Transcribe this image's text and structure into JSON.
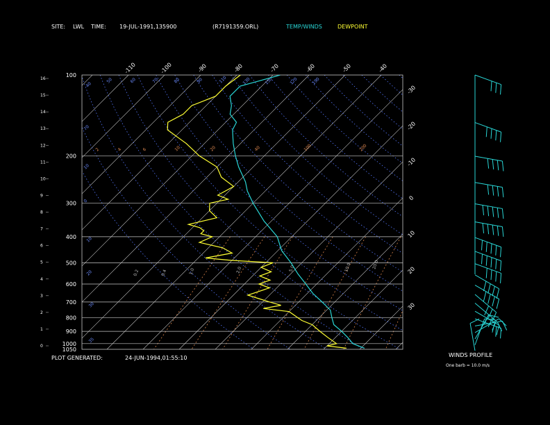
{
  "header": {
    "site_label": "SITE:",
    "site_value": "LWL",
    "time_label": "TIME:",
    "time_value": "19-JUL-1991,135900",
    "file_value": "(R7191359.ORL)",
    "temp_winds_label": "TEMP/WINDS",
    "dewpoint_label": "DEWPOINT"
  },
  "footer": {
    "plot_generated_label": "PLOT GENERATED:",
    "plot_generated_value": "24-JUN-1994,01:55:10",
    "winds_profile_label": "WINDS PROFILE",
    "barb_note": "One barb = 10.0 m/s"
  },
  "colors": {
    "background": "#000000",
    "text": "#ffffff",
    "temperature": "#29d6d6",
    "dewpoint": "#ffff33",
    "mixing_ratio": "#d9844a",
    "dry_adiabat": "#5577ff",
    "isotherm": "#c8c8c8",
    "isobar": "#c8c8c8",
    "wind_barb": "#29d6d6"
  },
  "chart_data": {
    "type": "line",
    "subtype": "skew-T log-P",
    "pressure_levels": [
      100,
      200,
      300,
      400,
      500,
      600,
      700,
      800,
      900,
      1000,
      1050
    ],
    "pressure_tick_labels": [
      "100",
      "200",
      "300",
      "400",
      "500",
      "600",
      "700",
      "800",
      "900",
      "1000",
      "1050"
    ],
    "height_km_ticks": [
      "16",
      "15",
      "14",
      "13",
      "12",
      "11",
      "10",
      "9",
      "8",
      "7",
      "6",
      "5",
      "4",
      "3",
      "2",
      "1",
      "0"
    ],
    "isotherm_top_labels": [
      "-110",
      "-100",
      "-90",
      "-80",
      "-70",
      "-60",
      "-50",
      "-40"
    ],
    "isotherm_right_labels": [
      "-30",
      "-20",
      "-10",
      "0",
      "10",
      "20",
      "30"
    ],
    "dry_adiabat_labels": [
      "40",
      "50",
      "60",
      "70",
      "80",
      "90",
      "110",
      "130",
      "150",
      "170",
      "190"
    ],
    "mixing_ratio_labels": [
      "2",
      "4",
      "6",
      "10",
      "20",
      "40",
      "100",
      "200",
      "400"
    ],
    "mixing_ratio_lower_labels": [
      "0.2",
      "0.4",
      "1.0",
      "2.0",
      "5.0",
      "10.0",
      "20.0"
    ],
    "pressure_range_hpa": [
      100,
      1050
    ],
    "temperature_range_c": [
      -120,
      40
    ],
    "series": [
      {
        "name": "TEMP/WINDS",
        "color": "#29d6d6",
        "pressure": [
          1040,
          1000,
          950,
          900,
          850,
          800,
          750,
          700,
          650,
          600,
          550,
          500,
          450,
          400,
          350,
          300,
          270,
          250,
          220,
          200,
          180,
          160,
          150,
          140,
          130,
          120,
          110,
          105,
          100
        ],
        "temperature": [
          31,
          26.5,
          23.5,
          20,
          16,
          13.5,
          11,
          6.5,
          1.5,
          -3,
          -8,
          -13,
          -19,
          -24,
          -32,
          -40,
          -45,
          -48,
          -54,
          -58,
          -62,
          -66,
          -67,
          -71,
          -73,
          -76,
          -76,
          -72,
          -68
        ]
      },
      {
        "name": "DEWPOINT",
        "color": "#ffff33",
        "pressure": [
          1040,
          1020,
          1000,
          950,
          900,
          850,
          820,
          800,
          760,
          740,
          720,
          700,
          680,
          660,
          640,
          620,
          600,
          580,
          560,
          540,
          520,
          500,
          490,
          480,
          460,
          440,
          420,
          400,
          390,
          380,
          370,
          360,
          340,
          320,
          300,
          290,
          280,
          260,
          240,
          220,
          200,
          180,
          160,
          150,
          140,
          130,
          120,
          110,
          100
        ],
        "temperature": [
          26,
          20,
          22,
          18,
          14,
          10,
          6,
          4,
          0,
          -8,
          -4,
          -8,
          -12,
          -16,
          -14,
          -12,
          -16,
          -14,
          -18,
          -16,
          -20,
          -18,
          -30,
          -38,
          -32,
          -36,
          -44,
          -42,
          -46,
          -46,
          -48,
          -52,
          -46,
          -50,
          -52,
          -48,
          -52,
          -50,
          -56,
          -60,
          -68,
          -75,
          -84,
          -86,
          -84,
          -84,
          -80,
          -80,
          -79
        ]
      }
    ],
    "winds_profile": {
      "pressure": [
        1050,
        1000,
        950,
        900,
        850,
        800,
        750,
        700,
        650,
        600,
        550,
        500,
        450,
        400,
        350,
        300,
        250,
        200,
        150,
        100
      ],
      "direction_deg": [
        10,
        340,
        330,
        300,
        280,
        250,
        240,
        230,
        230,
        240,
        240,
        250,
        250,
        250,
        260,
        260,
        260,
        260,
        250,
        250
      ],
      "speed_ms": [
        5,
        8,
        12,
        12,
        15,
        15,
        20,
        25,
        30,
        35,
        40,
        40,
        45,
        50,
        50,
        45,
        40,
        40,
        35,
        30
      ]
    }
  }
}
